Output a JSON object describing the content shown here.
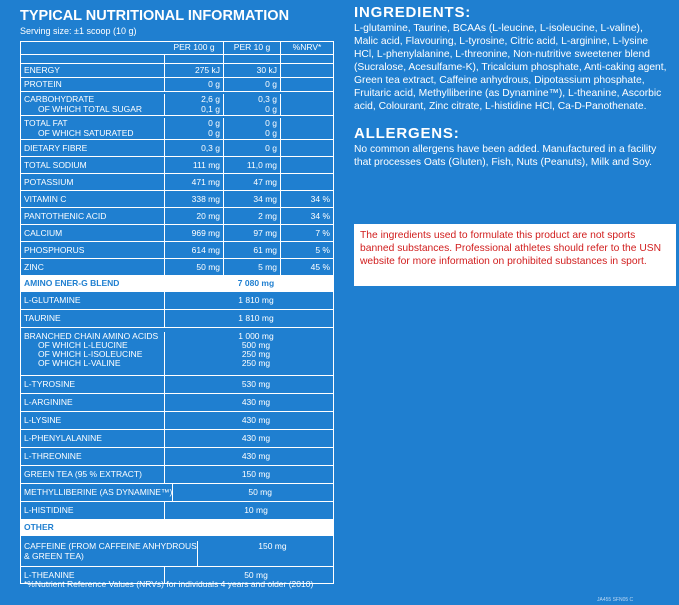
{
  "nutrition": {
    "title": "TYPICAL NUTRITIONAL INFORMATION",
    "serving": "Serving size: ±1 scoop (10 g)",
    "headers": {
      "per100": "PER 100 g",
      "per10": "PER 10 g",
      "nrv": "%NRV*"
    },
    "energy": {
      "name": "ENERGY",
      "per100": "275 kJ",
      "per10": "30 kJ"
    },
    "protein": {
      "name": "PROTEIN",
      "per100": "0 g",
      "per10": "0 g"
    },
    "carbohydrate": {
      "name": "CARBOHYDRATE",
      "sub": "OF WHICH TOTAL SUGAR",
      "per100": "2,6 g",
      "per100_sub": "0,1 g",
      "per10": "0,3 g",
      "per10_sub": "0 g"
    },
    "fat": {
      "name": "TOTAL FAT",
      "sub": "OF WHICH SATURATED",
      "per100": "0 g",
      "per100_sub": "0 g",
      "per10": "0 g",
      "per10_sub": "0 g"
    },
    "fibre": {
      "name": "DIETARY FIBRE",
      "per100": "0,3 g",
      "per10": "0 g"
    },
    "sodium": {
      "name": "TOTAL SODIUM",
      "per100": "111 mg",
      "per10": "11,0 mg"
    },
    "potassium": {
      "name": "POTASSIUM",
      "per100": "471 mg",
      "per10": "47 mg"
    },
    "vitc": {
      "name": "VITAMIN C",
      "per100": "338 mg",
      "per10": "34 mg",
      "nrv": "34 %"
    },
    "panto": {
      "name": "PANTOTHENIC ACID",
      "per100": "20 mg",
      "per10": "2 mg",
      "nrv": "34 %"
    },
    "calcium": {
      "name": "CALCIUM",
      "per100": "969 mg",
      "per10": "97 mg",
      "nrv": "7 %"
    },
    "phosphorus": {
      "name": "PHOSPHORUS",
      "per100": "614 mg",
      "per10": "61 mg",
      "nrv": "5 %"
    },
    "zinc": {
      "name": "ZINC",
      "per100": "50 mg",
      "per10": "5 mg",
      "nrv": "45 %"
    },
    "blend": {
      "name": "AMINO ENER-G BLEND",
      "value": "7 080 mg"
    },
    "glutamine": {
      "name": "L-GLUTAMINE",
      "value": "1 810 mg"
    },
    "taurine": {
      "name": "TAURINE",
      "value": "1 810 mg"
    },
    "bcaa": {
      "name": "BRANCHED CHAIN AMINO ACIDS",
      "value": "1 000 mg",
      "leucine": "OF WHICH L-LEUCINE",
      "leucine_value": "500 mg",
      "isoleucine": "OF WHICH L-ISOLEUCINE",
      "isoleucine_value": "250 mg",
      "valine": "OF WHICH L-VALINE",
      "valine_value": "250 mg"
    },
    "tyrosine": {
      "name": "L-TYROSINE",
      "value": "530 mg"
    },
    "arginine": {
      "name": "L-ARGININE",
      "value": "430 mg"
    },
    "lysine": {
      "name": "L-LYSINE",
      "value": "430 mg"
    },
    "phenylalanine": {
      "name": "L-PHENYLALANINE",
      "value": "430 mg"
    },
    "threonine": {
      "name": "L-THREONINE",
      "value": "430 mg"
    },
    "greentea": {
      "name": "GREEN TEA (95 % EXTRACT)",
      "value": "150 mg"
    },
    "methyl": {
      "name": "METHYLLIBERINE (AS DYNAMINE™)",
      "value": "50 mg"
    },
    "histidine": {
      "name": "L-HISTIDINE",
      "value": "10 mg"
    },
    "other": {
      "name": "OTHER"
    },
    "caffeine": {
      "name": "CAFFEINE (FROM CAFFEINE ANHYDROUS",
      "name2": "& GREEN TEA)",
      "value": "150 mg"
    },
    "theanine": {
      "name": "L-THEANINE",
      "value": "50 mg"
    },
    "footnote": "*%Nutrient Reference Values (NRVs) for individuals 4 years and older (2010)"
  },
  "ingredients": {
    "title": "INGREDIENTS:",
    "text": "L-glutamine, Taurine, BCAAs (L-leucine, L-isoleucine, L-valine), Malic acid, Flavouring, L-tyrosine, Citric acid, L-arginine, L-lysine HCl, L-phenylalanine, L-threonine, Non-nutritive sweetener blend (Sucralose, Acesulfame-K), Tricalcium phosphate, Anti-caking agent, Green tea extract, Caffeine anhydrous, Dipotassium phosphate, Fruitaric acid, Methylliberine (as Dynamine™), L-theanine, Ascorbic acid, Colourant, Zinc citrate, L-histidine HCl, Ca-D-Panothenate."
  },
  "allergens": {
    "title": "ALLERGENS:",
    "text": "No common allergens have been added. Manufactured in a facility that processes Oats (Gluten), Fish, Nuts (Peanuts), Milk and Soy."
  },
  "warning": {
    "text": "The ingredients used to formulate this product are not sports banned substances. Professional athletes should refer to the USN website for more information on prohibited substances in sport."
  },
  "code": "JA455 SFN05 C",
  "colors": {
    "background": "#1f7fd0",
    "warning_text": "#d11d1d",
    "panel": "#ffffff"
  }
}
